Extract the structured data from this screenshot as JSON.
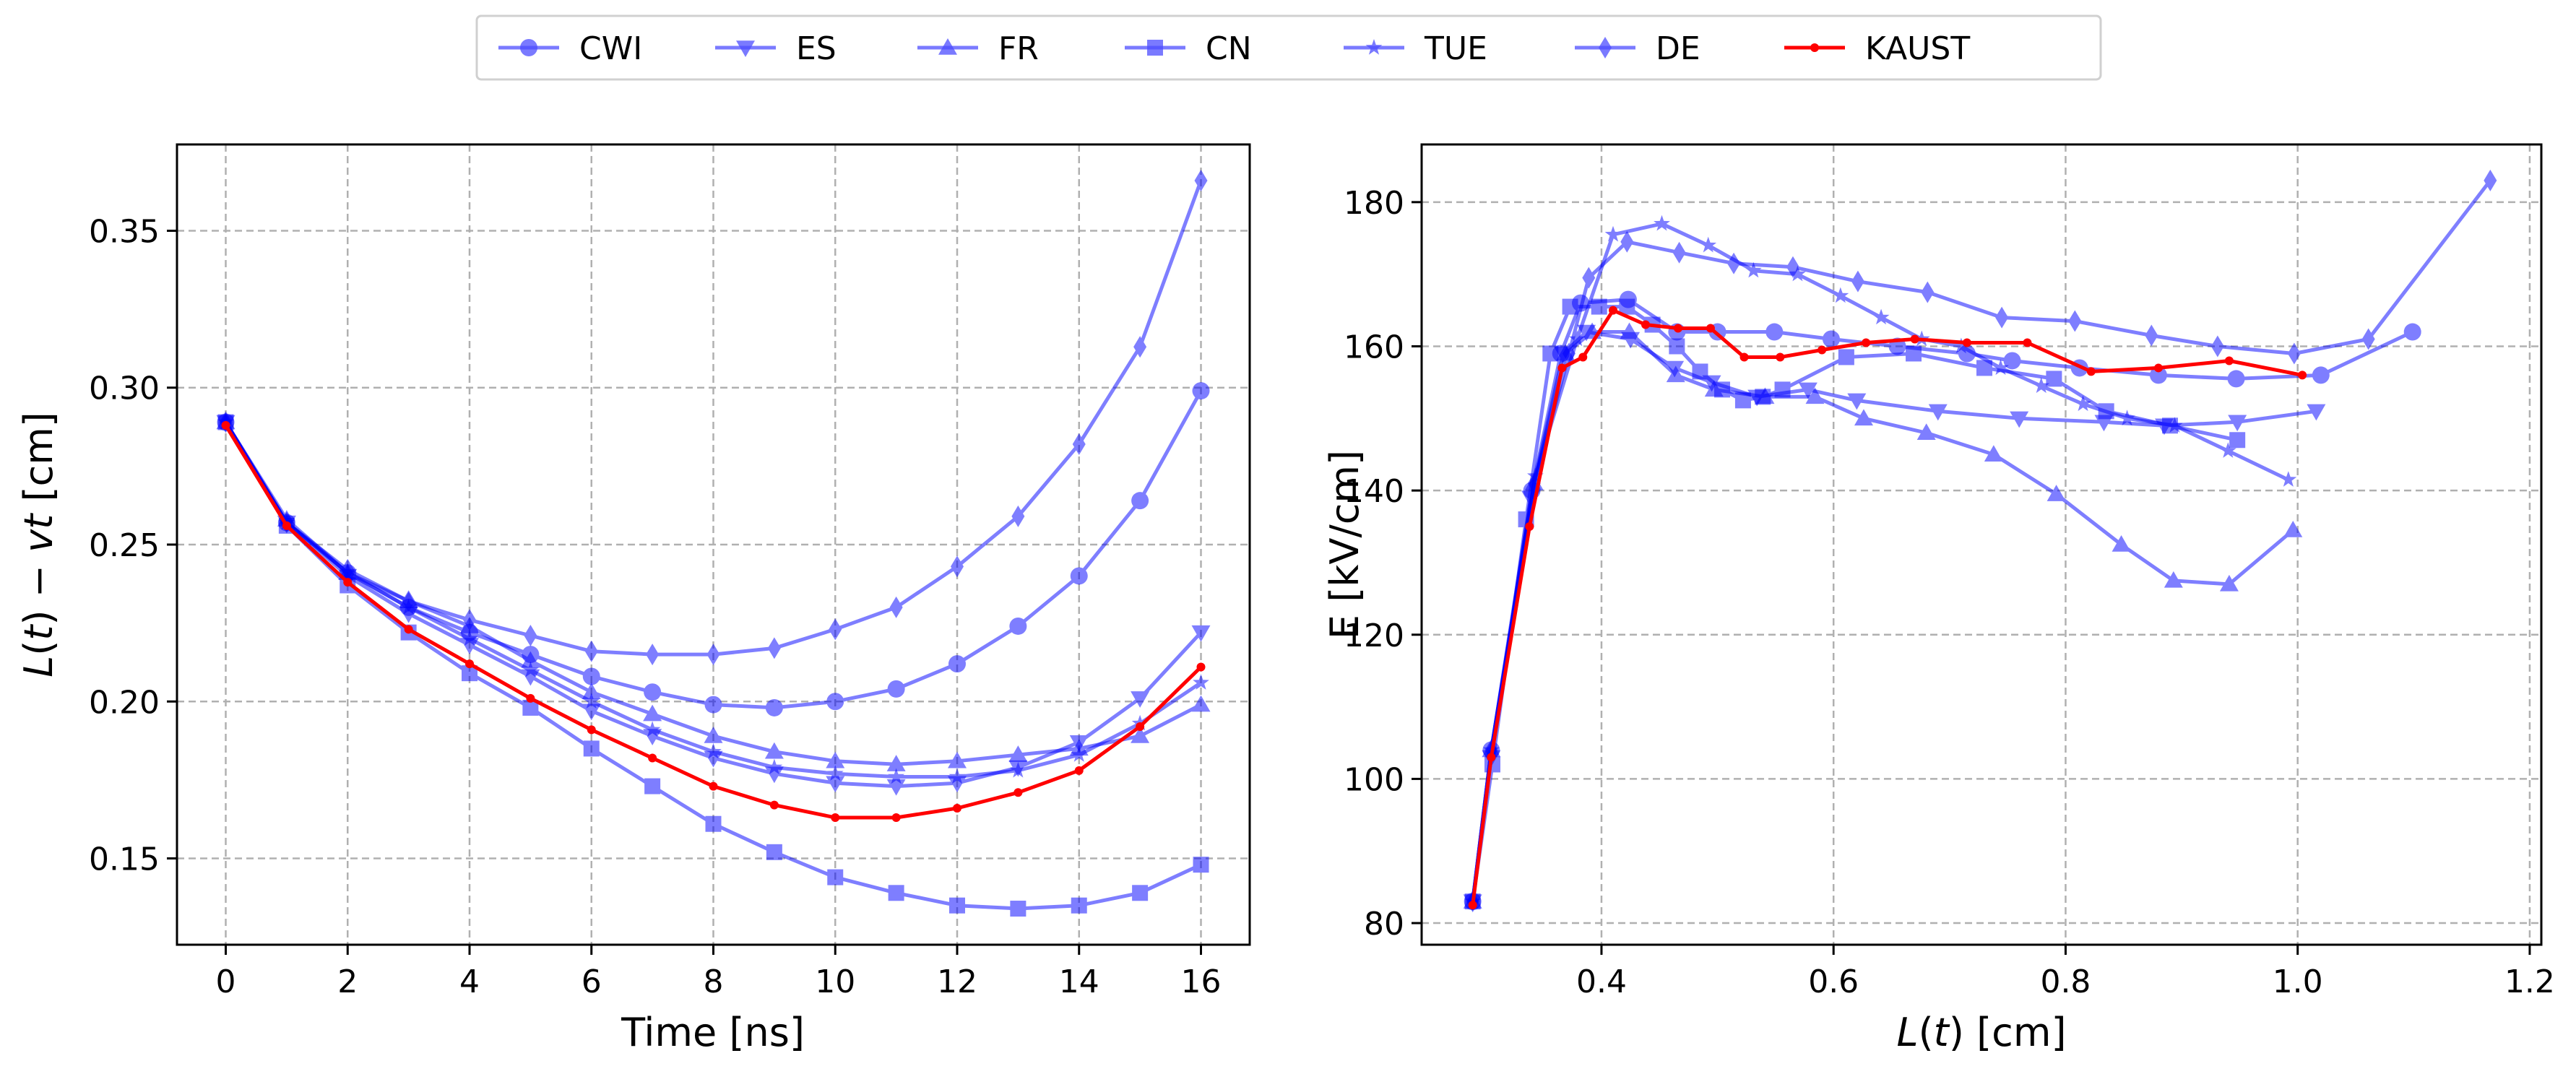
{
  "legend": {
    "entries": [
      {
        "name": "CWI",
        "marker": "circle",
        "color": "#4d4dff"
      },
      {
        "name": "ES",
        "marker": "triangle-down",
        "color": "#4d4dff"
      },
      {
        "name": "FR",
        "marker": "triangle-up",
        "color": "#4d4dff"
      },
      {
        "name": "CN",
        "marker": "square",
        "color": "#4d4dff"
      },
      {
        "name": "TUE",
        "marker": "star",
        "color": "#4d4dff"
      },
      {
        "name": "DE",
        "marker": "thin-diamond",
        "color": "#4d4dff"
      },
      {
        "name": "KAUST",
        "marker": "point",
        "color": "#ff0000"
      }
    ],
    "placement": "top-center"
  },
  "chart_data": [
    {
      "type": "line",
      "title": "",
      "xlabel": "Time [ns]",
      "ylabel": "L(t) − vt [cm]",
      "ylabel_parts": {
        "italic_var1": "L",
        "mid1": "(",
        "italic_var2": "t",
        "mid2": ") − ",
        "italic_var3": "vt",
        "unit": " [cm]"
      },
      "xlim": [
        -0.8,
        16.8
      ],
      "ylim": [
        0.1225,
        0.3775
      ],
      "xticks": [
        0,
        2,
        4,
        6,
        8,
        10,
        12,
        14,
        16
      ],
      "xtick_labels": [
        "0",
        "2",
        "4",
        "6",
        "8",
        "10",
        "12",
        "14",
        "16"
      ],
      "yticks": [
        0.15,
        0.2,
        0.25,
        0.3,
        0.35
      ],
      "ytick_labels": [
        "0.15",
        "0.20",
        "0.25",
        "0.30",
        "0.35"
      ],
      "grid": true,
      "x": [
        0,
        1,
        2,
        3,
        4,
        5,
        6,
        7,
        8,
        9,
        10,
        11,
        12,
        13,
        14,
        15,
        16
      ],
      "series": [
        {
          "name": "CWI",
          "values": [
            0.289,
            0.257,
            0.241,
            0.23,
            0.222,
            0.215,
            0.208,
            0.203,
            0.199,
            0.198,
            0.2,
            0.204,
            0.212,
            0.224,
            0.24,
            0.264,
            0.299
          ]
        },
        {
          "name": "ES",
          "values": [
            0.289,
            0.257,
            0.24,
            0.228,
            0.218,
            0.208,
            0.197,
            0.189,
            0.182,
            0.177,
            0.174,
            0.173,
            0.174,
            0.179,
            0.187,
            0.201,
            0.222
          ]
        },
        {
          "name": "FR",
          "values": [
            0.289,
            0.258,
            0.241,
            0.232,
            0.224,
            0.213,
            0.203,
            0.196,
            0.189,
            0.184,
            0.181,
            0.18,
            0.181,
            0.183,
            0.185,
            0.189,
            0.199
          ]
        },
        {
          "name": "CN",
          "values": [
            0.289,
            0.256,
            0.237,
            0.222,
            0.209,
            0.198,
            0.185,
            0.173,
            0.161,
            0.152,
            0.144,
            0.139,
            0.135,
            0.134,
            0.135,
            0.139,
            0.148
          ]
        },
        {
          "name": "TUE",
          "values": [
            0.289,
            0.257,
            0.241,
            0.23,
            0.22,
            0.21,
            0.2,
            0.191,
            0.184,
            0.179,
            0.177,
            0.176,
            0.176,
            0.178,
            0.183,
            0.193,
            0.206
          ]
        },
        {
          "name": "DE",
          "values": [
            0.289,
            0.257,
            0.242,
            0.232,
            0.226,
            0.221,
            0.216,
            0.215,
            0.215,
            0.217,
            0.223,
            0.23,
            0.243,
            0.259,
            0.282,
            0.313,
            0.366
          ]
        },
        {
          "name": "KAUST",
          "values": [
            0.288,
            0.256,
            0.238,
            0.223,
            0.212,
            0.201,
            0.191,
            0.182,
            0.173,
            0.167,
            0.163,
            0.163,
            0.166,
            0.171,
            0.178,
            0.192,
            0.211
          ]
        }
      ]
    },
    {
      "type": "line",
      "title": "",
      "xlabel": "L(t) [cm]",
      "xlabel_parts": {
        "italic_var1": "L",
        "mid1": "(",
        "italic_var2": "t",
        "mid2": ")",
        "unit": " [cm]"
      },
      "ylabel": "E [kV/cm]",
      "xlim": [
        0.245,
        1.21
      ],
      "ylim": [
        77,
        188
      ],
      "xticks": [
        0.4,
        0.6,
        0.8,
        1.0,
        1.2
      ],
      "xtick_labels": [
        "0.4",
        "0.6",
        "0.8",
        "1.0",
        "1.2"
      ],
      "yticks": [
        80,
        100,
        120,
        140,
        160,
        180
      ],
      "ytick_labels": [
        "80",
        "100",
        "120",
        "140",
        "160",
        "180"
      ],
      "grid": true,
      "series": [
        {
          "name": "CWI",
          "x": [
            0.289,
            0.305,
            0.34,
            0.365,
            0.382,
            0.423,
            0.465,
            0.5,
            0.549,
            0.598,
            0.655,
            0.715,
            0.754,
            0.812,
            0.88,
            0.947,
            1.02,
            1.099
          ],
          "y": [
            83,
            104,
            140,
            159,
            166,
            166.5,
            162,
            162,
            162,
            161,
            160,
            159,
            158,
            157,
            156,
            155.5,
            156,
            162
          ]
        },
        {
          "name": "ES",
          "x": [
            0.289,
            0.305,
            0.339,
            0.367,
            0.387,
            0.425,
            0.463,
            0.495,
            0.534,
            0.578,
            0.62,
            0.69,
            0.76,
            0.833,
            0.885,
            0.948,
            1.016
          ],
          "y": [
            83,
            103,
            139,
            159,
            162,
            161,
            157,
            155,
            153,
            154,
            152.5,
            151,
            150,
            149.5,
            149,
            149.5,
            151
          ]
        },
        {
          "name": "FR",
          "x": [
            0.289,
            0.305,
            0.342,
            0.369,
            0.392,
            0.424,
            0.464,
            0.497,
            0.541,
            0.584,
            0.626,
            0.68,
            0.738,
            0.792,
            0.848,
            0.893,
            0.941,
            0.996
          ],
          "y": [
            83,
            104,
            141,
            159,
            162,
            162,
            156,
            154,
            153,
            153,
            150,
            148,
            145,
            139.5,
            132.5,
            127.5,
            127,
            134.5
          ]
        },
        {
          "name": "CN",
          "x": [
            0.289,
            0.306,
            0.335,
            0.356,
            0.373,
            0.398,
            0.422,
            0.444,
            0.465,
            0.485,
            0.504,
            0.522,
            0.539,
            0.556,
            0.611,
            0.669,
            0.73,
            0.79,
            0.835,
            0.89,
            0.948
          ],
          "y": [
            83,
            102,
            136,
            159,
            165.5,
            165.5,
            165.5,
            163,
            160,
            156.5,
            154,
            152.5,
            153,
            154,
            158.5,
            159,
            157,
            155.5,
            151,
            149,
            147
          ]
        },
        {
          "name": "TUE",
          "x": [
            0.289,
            0.305,
            0.343,
            0.379,
            0.41,
            0.452,
            0.492,
            0.531,
            0.569,
            0.606,
            0.641,
            0.676,
            0.71,
            0.744,
            0.779,
            0.815,
            0.853,
            0.894,
            0.94,
            0.992
          ],
          "y": [
            83,
            104,
            142,
            161,
            175.5,
            177,
            174,
            170.5,
            170,
            167,
            164,
            161,
            160,
            157,
            154.5,
            152,
            150,
            149,
            145.5,
            141.5
          ]
        },
        {
          "name": "DE",
          "x": [
            0.289,
            0.305,
            0.342,
            0.372,
            0.389,
            0.422,
            0.467,
            0.514,
            0.565,
            0.621,
            0.681,
            0.745,
            0.808,
            0.874,
            0.931,
            0.997,
            1.061,
            1.166
          ],
          "y": [
            83,
            104,
            141,
            159,
            169.5,
            174.5,
            173,
            171.5,
            171,
            169,
            167.5,
            164,
            163.5,
            161.5,
            160,
            159,
            161,
            183
          ]
        },
        {
          "name": "KAUST",
          "x": [
            0.289,
            0.305,
            0.338,
            0.366,
            0.384,
            0.41,
            0.438,
            0.466,
            0.494,
            0.523,
            0.554,
            0.59,
            0.628,
            0.67,
            0.715,
            0.767,
            0.822,
            0.88,
            0.941,
            1.004
          ],
          "y": [
            82.5,
            103,
            135,
            157,
            158.5,
            165,
            163,
            162.5,
            162.5,
            158.5,
            158.5,
            159.5,
            160.5,
            161,
            160.5,
            160.5,
            156.5,
            157,
            158,
            156
          ]
        }
      ]
    }
  ]
}
